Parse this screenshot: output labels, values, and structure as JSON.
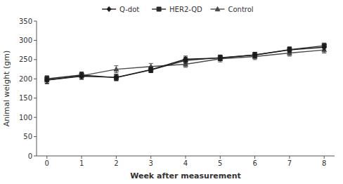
{
  "chart_data": {
    "type": "line",
    "xlabel": "Week after measurement",
    "ylabel": "Animal weight (gm)",
    "x": [
      0,
      1,
      2,
      3,
      4,
      5,
      6,
      7,
      8
    ],
    "series": [
      {
        "name": "Q-dot",
        "color": "#1a1a1a",
        "marker": "diamond",
        "values": [
          197,
          207,
          204,
          224,
          251,
          254,
          262,
          275,
          282
        ],
        "errors": [
          8,
          8,
          8,
          7,
          8,
          7,
          7,
          7,
          7
        ]
      },
      {
        "name": "HER2-QD",
        "color": "#2a2a2a",
        "marker": "square",
        "values": [
          200,
          210,
          203,
          223,
          248,
          255,
          262,
          276,
          286
        ],
        "errors": [
          8,
          8,
          8,
          7,
          8,
          7,
          7,
          7,
          7
        ]
      },
      {
        "name": "Control",
        "color": "#4a4a4a",
        "marker": "triangle",
        "values": [
          197,
          208,
          225,
          232,
          238,
          252,
          258,
          267,
          275
        ],
        "errors": [
          10,
          9,
          9,
          8,
          8,
          8,
          8,
          8,
          8
        ]
      }
    ],
    "xlim": [
      -0.3,
      8.3
    ],
    "xticks": [
      0,
      1,
      2,
      3,
      4,
      5,
      6,
      7,
      8
    ],
    "ylim": [
      0,
      350
    ],
    "yticks": [
      0,
      50,
      100,
      150,
      200,
      250,
      300,
      350
    ],
    "grid": false,
    "legend": "top"
  }
}
